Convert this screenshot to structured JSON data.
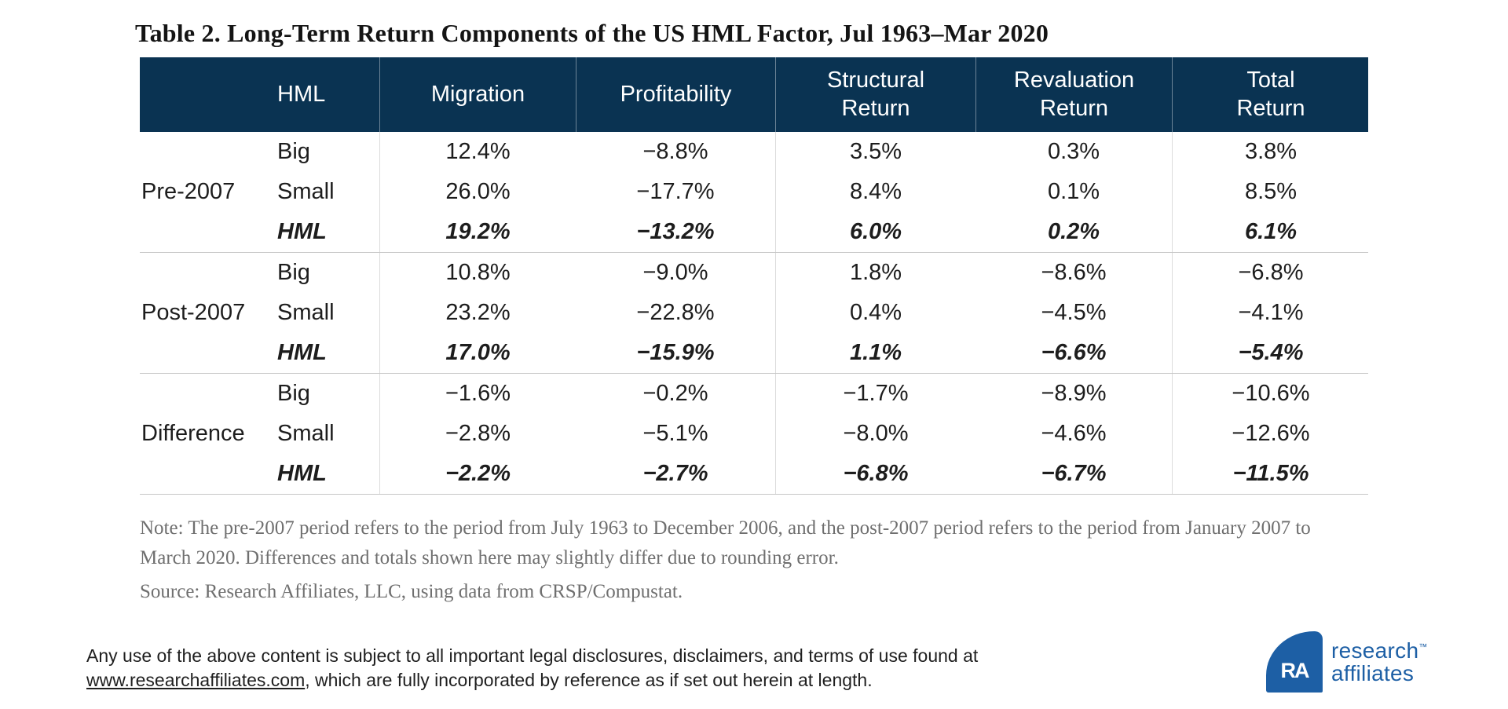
{
  "title": "Table 2. Long-Term Return Components of the US HML Factor, Jul 1963–Mar 2020",
  "table": {
    "col_headers": {
      "hml": "HML",
      "migration": "Migration",
      "profitability": "Profitability",
      "structural": [
        "Structural",
        "Return"
      ],
      "revaluation": [
        "Revaluation",
        "Return"
      ],
      "total": [
        "Total",
        "Return"
      ]
    },
    "groups": [
      {
        "label": "Pre-2007",
        "rows": [
          {
            "size": "Big",
            "values": [
              "12.4%",
              "−8.8%",
              "3.5%",
              "0.3%",
              "3.8%"
            ]
          },
          {
            "size": "Small",
            "values": [
              "26.0%",
              "−17.7%",
              "8.4%",
              "0.1%",
              "8.5%"
            ]
          },
          {
            "size": "HML",
            "values": [
              "19.2%",
              "−13.2%",
              "6.0%",
              "0.2%",
              "6.1%"
            ]
          }
        ]
      },
      {
        "label": "Post-2007",
        "rows": [
          {
            "size": "Big",
            "values": [
              "10.8%",
              "−9.0%",
              "1.8%",
              "−8.6%",
              "−6.8%"
            ]
          },
          {
            "size": "Small",
            "values": [
              "23.2%",
              "−22.8%",
              "0.4%",
              "−4.5%",
              "−4.1%"
            ]
          },
          {
            "size": "HML",
            "values": [
              "17.0%",
              "−15.9%",
              "1.1%",
              "−6.6%",
              "−5.4%"
            ]
          }
        ]
      },
      {
        "label": "Difference",
        "rows": [
          {
            "size": "Big",
            "values": [
              "−1.6%",
              "−0.2%",
              "−1.7%",
              "−8.9%",
              "−10.6%"
            ]
          },
          {
            "size": "Small",
            "values": [
              "−2.8%",
              "−5.1%",
              "−8.0%",
              "−4.6%",
              "−12.6%"
            ]
          },
          {
            "size": "HML",
            "values": [
              "−2.2%",
              "−2.7%",
              "−6.8%",
              "−6.7%",
              "−11.5%"
            ]
          }
        ]
      }
    ]
  },
  "notes": {
    "note": "Note: The pre-2007 period refers to the period from July 1963 to December 2006, and the post-2007 period refers to the period from January 2007 to March 2020. Differences and totals shown here may slightly differ due to rounding error.",
    "source": "Source: Research Affiliates, LLC, using data from CRSP/Compustat."
  },
  "legal": {
    "line_before_link": "Any use of the above content is subject to all important legal disclosures, disclaimers, and terms of use found at",
    "link": "www.researchaffiliates.com",
    "line_after_link": ", which are fully incorporated by reference as if set out herein at length."
  },
  "logo": {
    "monogram": "RA",
    "line1": "research",
    "tm": "™",
    "line2": "affiliates"
  },
  "colors": {
    "header_navy": "#0a3352",
    "logo_blue": "#1d5fa5",
    "note_gray": "#6f6f6f",
    "body_text": "#1d1d1d",
    "separator_gray": "#c7c7c7"
  },
  "chart_data": {
    "type": "table",
    "title": "Table 2. Long-Term Return Components of the US HML Factor, Jul 1963–Mar 2020",
    "columns": [
      "Migration",
      "Profitability",
      "Structural Return",
      "Revaluation Return",
      "Total Return"
    ],
    "row_groups": [
      "Pre-2007",
      "Post-2007",
      "Difference"
    ],
    "rows": [
      {
        "group": "Pre-2007",
        "series": "Big",
        "migration": 12.4,
        "profitability": -8.8,
        "structural_return": 3.5,
        "revaluation_return": 0.3,
        "total_return": 3.8
      },
      {
        "group": "Pre-2007",
        "series": "Small",
        "migration": 26.0,
        "profitability": -17.7,
        "structural_return": 8.4,
        "revaluation_return": 0.1,
        "total_return": 8.5
      },
      {
        "group": "Pre-2007",
        "series": "HML",
        "migration": 19.2,
        "profitability": -13.2,
        "structural_return": 6.0,
        "revaluation_return": 0.2,
        "total_return": 6.1
      },
      {
        "group": "Post-2007",
        "series": "Big",
        "migration": 10.8,
        "profitability": -9.0,
        "structural_return": 1.8,
        "revaluation_return": -8.6,
        "total_return": -6.8
      },
      {
        "group": "Post-2007",
        "series": "Small",
        "migration": 23.2,
        "profitability": -22.8,
        "structural_return": 0.4,
        "revaluation_return": -4.5,
        "total_return": -4.1
      },
      {
        "group": "Post-2007",
        "series": "HML",
        "migration": 17.0,
        "profitability": -15.9,
        "structural_return": 1.1,
        "revaluation_return": -6.6,
        "total_return": -5.4
      },
      {
        "group": "Difference",
        "series": "Big",
        "migration": -1.6,
        "profitability": -0.2,
        "structural_return": -1.7,
        "revaluation_return": -8.9,
        "total_return": -10.6
      },
      {
        "group": "Difference",
        "series": "Small",
        "migration": -2.8,
        "profitability": -5.1,
        "structural_return": -8.0,
        "revaluation_return": -4.6,
        "total_return": -12.6
      },
      {
        "group": "Difference",
        "series": "HML",
        "migration": -2.2,
        "profitability": -2.7,
        "structural_return": -6.8,
        "revaluation_return": -6.7,
        "total_return": -11.5
      }
    ],
    "units": "percent"
  }
}
